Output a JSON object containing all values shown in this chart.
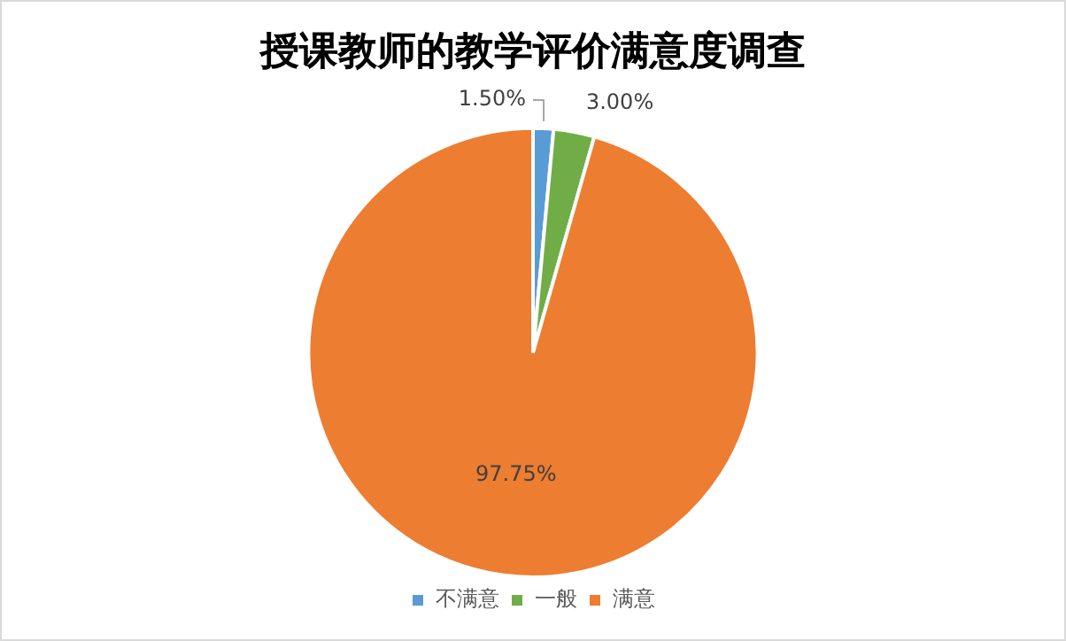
{
  "chart_data": {
    "type": "pie",
    "title": "授课教师的教学评价满意度调查",
    "categories": [
      "不满意",
      "一般",
      "满意"
    ],
    "values": [
      1.5,
      3,
      97.75
    ],
    "colors": [
      "#5b9bd5",
      "#70ad47",
      "#ed7d31"
    ],
    "value_labels": [
      "1.50%",
      "3.00%",
      "97.75%"
    ],
    "legend": "bottom"
  }
}
